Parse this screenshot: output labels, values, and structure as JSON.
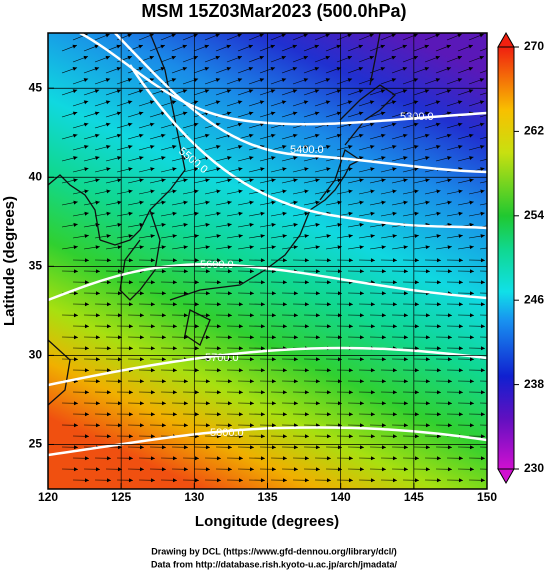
{
  "chart_data": {
    "type": "map",
    "title": "MSM 15Z03Mar2023 (500.0hPa)",
    "x_label": "Longitude (degrees)",
    "y_label": "Latitude  (degrees)",
    "xlim": [
      120,
      150
    ],
    "xticks": [
      120,
      125,
      130,
      135,
      140,
      145,
      150
    ],
    "ylim": [
      22.5,
      48.1
    ],
    "yticks": [
      25,
      30,
      35,
      40,
      45
    ],
    "grid": true,
    "colorbar": {
      "lim": [
        230,
        270
      ],
      "ticks": [
        230,
        238,
        246,
        254,
        262,
        270
      ]
    },
    "contour_labels": [
      "5300.0",
      "5400.0",
      "5500.0",
      "5600.0",
      "5700.0",
      "5800.0"
    ],
    "footer": [
      "Drawing by DCL (https://www.gfd-dennou.org/library/dcl/)",
      "Data from http://database.rish.kyoto-u.ac.jp/arch/jmadata/"
    ]
  }
}
